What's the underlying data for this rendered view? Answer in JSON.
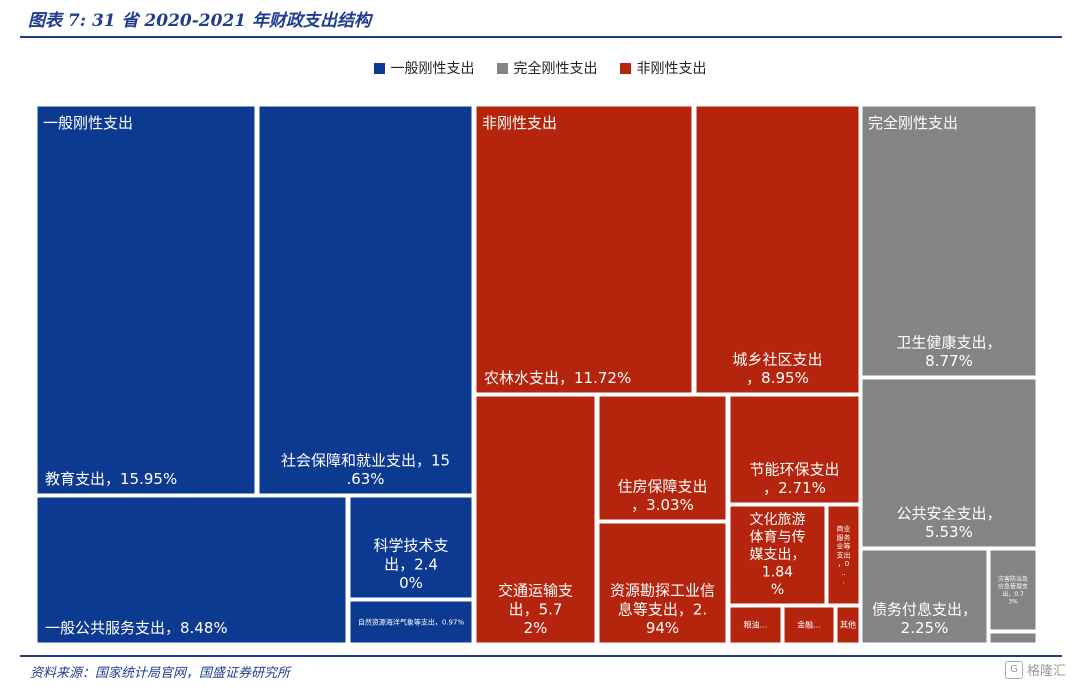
{
  "header": {
    "title": "图表 7:  31 省 2020-2021 年财政支出结构"
  },
  "footer": {
    "source": "资料来源：国家统计局官网，国盛证券研究所",
    "logo_text": "格隆汇"
  },
  "colors": {
    "general_rigid": "#0d3a91",
    "fully_rigid": "#848484",
    "non_rigid": "#b5250e",
    "accent": "#1f3c8f"
  },
  "chart_data": {
    "type": "treemap",
    "title": "",
    "legend": [
      {
        "name": "一般刚性支出",
        "color": "#0d3a91"
      },
      {
        "name": "完全刚性支出",
        "color": "#848484"
      },
      {
        "name": "非刚性支出",
        "color": "#b5250e"
      }
    ],
    "groups": [
      {
        "name": "一般刚性支出",
        "color": "#0d3a91",
        "label": "一般刚性支出"
      },
      {
        "name": "非刚性支出",
        "color": "#b5250e",
        "label": "非刚性支出"
      },
      {
        "name": "完全刚性支出",
        "color": "#848484",
        "label": "完全刚性支出"
      }
    ],
    "items": [
      {
        "group": "一般刚性支出",
        "name": "教育支出",
        "value": 15.95,
        "label": "教育支出，15.95%"
      },
      {
        "group": "一般刚性支出",
        "name": "社会保障和就业支出",
        "value": 15.63,
        "label": "社会保障和就业支出，15.63%"
      },
      {
        "group": "一般刚性支出",
        "name": "一般公共服务支出",
        "value": 8.48,
        "label": "一般公共服务支出，8.48%"
      },
      {
        "group": "一般刚性支出",
        "name": "科学技术支出",
        "value": 2.4,
        "label": "科学技术支出，2.40%"
      },
      {
        "group": "一般刚性支出",
        "name": "自然资源海洋气象等支出",
        "value": 0.97,
        "label": "自然资源海洋气象等支出，0.97%"
      },
      {
        "group": "非刚性支出",
        "name": "农林水支出",
        "value": 11.72,
        "label": "农林水支出，11.72%"
      },
      {
        "group": "非刚性支出",
        "name": "城乡社区支出",
        "value": 8.95,
        "label": "城乡社区支出，8.95%"
      },
      {
        "group": "非刚性支出",
        "name": "交通运输支出",
        "value": 5.72,
        "label": "交通运输支出，5.72%"
      },
      {
        "group": "非刚性支出",
        "name": "住房保障支出",
        "value": 3.03,
        "label": "住房保障支出，3.03%"
      },
      {
        "group": "非刚性支出",
        "name": "资源勘探工业信息等支出",
        "value": 2.94,
        "label": "资源勘探工业信息等支出，2.94%"
      },
      {
        "group": "非刚性支出",
        "name": "节能环保支出",
        "value": 2.71,
        "label": "节能环保支出，2.71%"
      },
      {
        "group": "非刚性支出",
        "name": "文化旅游体育与传媒支出",
        "value": 1.84,
        "label": "文化旅游体育与传媒支出，1.84%"
      },
      {
        "group": "非刚性支出",
        "name": "商业服务业等支出",
        "value": null,
        "label": "商业服务业等支出，0..."
      },
      {
        "group": "非刚性支出",
        "name": "粮油…",
        "value": null,
        "label": "粮油..."
      },
      {
        "group": "非刚性支出",
        "name": "金融…",
        "value": null,
        "label": "金融..."
      },
      {
        "group": "非刚性支出",
        "name": "其他",
        "value": null,
        "label": "其他"
      },
      {
        "group": "完全刚性支出",
        "name": "卫生健康支出",
        "value": 8.77,
        "label": "卫生健康支出，8.77%"
      },
      {
        "group": "完全刚性支出",
        "name": "公共安全支出",
        "value": 5.53,
        "label": "公共安全支出，5.53%"
      },
      {
        "group": "完全刚性支出",
        "name": "债务付息支出",
        "value": 2.25,
        "label": "债务付息支出，2.25%"
      },
      {
        "group": "完全刚性支出",
        "name": "灾害防治及应急管理支出",
        "value": 0.73,
        "label": "灾害防治及应急管理支出，0.73%"
      },
      {
        "group": "完全刚性支出",
        "name": "其他",
        "value": null,
        "label": ""
      }
    ]
  }
}
